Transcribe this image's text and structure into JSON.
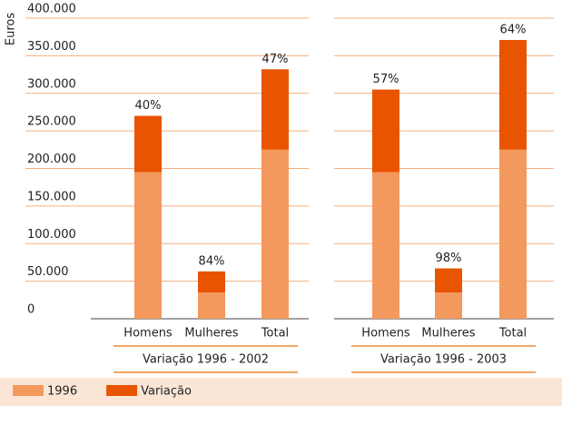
{
  "chart_data": {
    "type": "stacked-bar",
    "y_label": "Euros",
    "categories": [
      "Homens",
      "Mulheres",
      "Total",
      "Homens",
      "Mulheres",
      "Total"
    ],
    "groups": [
      {
        "label": "Variação 1996 - 2002",
        "start": 0,
        "count": 3
      },
      {
        "label": "Variação 1996 - 2003",
        "start": 3,
        "count": 3
      }
    ],
    "series": [
      {
        "name": "1996",
        "color": "#f4995e",
        "values": [
          195000,
          35000,
          225000,
          195000,
          35000,
          225000
        ]
      },
      {
        "name": "Variação",
        "color": "#e85400",
        "values": [
          75000,
          28000,
          107000,
          110000,
          32000,
          146000
        ]
      }
    ],
    "annotations": [
      "40%",
      "84%",
      "47%",
      "57%",
      "98%",
      "64%"
    ],
    "ylim": [
      0,
      400000
    ],
    "yticks": [
      {
        "value": 0,
        "label": "0"
      },
      {
        "value": 50000,
        "label": "50.000"
      },
      {
        "value": 100000,
        "label": "100.000"
      },
      {
        "value": 150000,
        "label": "150.000"
      },
      {
        "value": 200000,
        "label": "200.000"
      },
      {
        "value": 250000,
        "label": "250.000"
      },
      {
        "value": 300000,
        "label": "300.000"
      },
      {
        "value": 350000,
        "label": "350.000"
      },
      {
        "value": 400000,
        "label": "400.000"
      }
    ],
    "grid": true
  }
}
